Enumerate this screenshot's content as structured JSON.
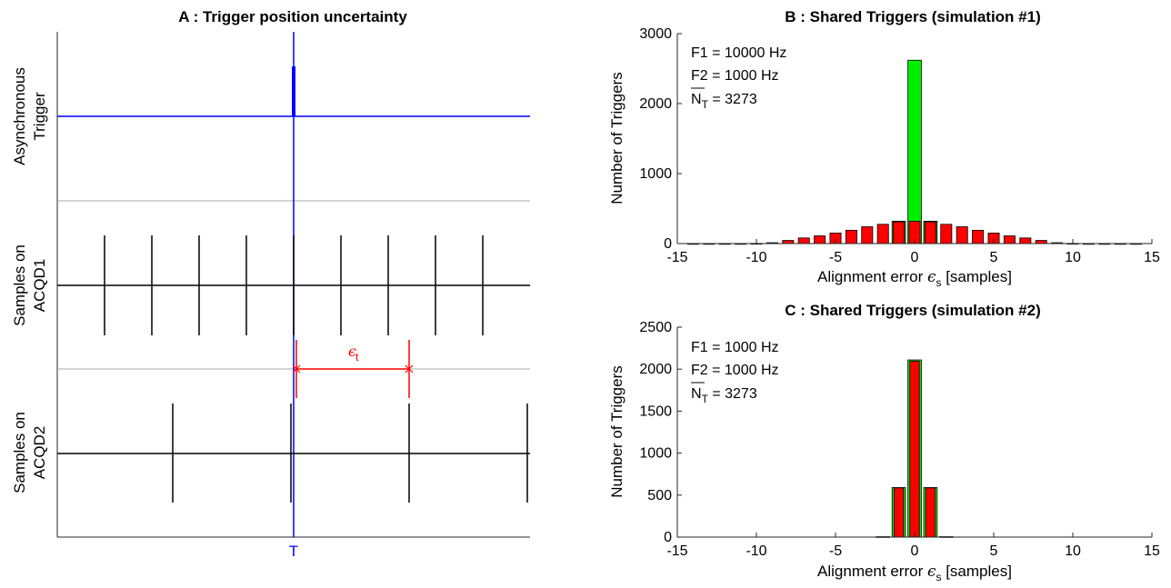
{
  "chart_data": [
    {
      "type": "diagram",
      "title": "A : Trigger position uncertainty",
      "rows": [
        {
          "label_line1": "Asynchronous",
          "label_line2": "Trigger"
        },
        {
          "label_line1": "Samples on",
          "label_line2": "ACQD1"
        },
        {
          "label_line1": "Samples on",
          "label_line2": "ACQD2"
        }
      ],
      "trigger_label": "T",
      "epsilon_label": "ϵ",
      "epsilon_sub": "t",
      "acqd1_tick_offsets": [
        -4,
        -3,
        -2,
        -1,
        0,
        1,
        2,
        3,
        4
      ],
      "acqd2_tick_offsets": [
        -1,
        0,
        1,
        2
      ],
      "colors": {
        "trigger": "#0000ff",
        "samples": "#000000",
        "epsilon": "#ff0000",
        "separator": "#aaaaaa"
      }
    },
    {
      "type": "bar",
      "title": "B : Shared Triggers (simulation #1)",
      "xlabel_prefix": "Alignment error ",
      "xlabel_symbol": "ϵ",
      "xlabel_sub": "s",
      "xlabel_suffix": " [samples]",
      "ylabel": "Number of Triggers",
      "xlim": [
        -15,
        15
      ],
      "ylim": [
        0,
        3000
      ],
      "xticks": [
        -15,
        -10,
        -5,
        0,
        5,
        10,
        15
      ],
      "yticks": [
        0,
        1000,
        2000,
        3000
      ],
      "annotations": [
        "F1 = 10000 Hz",
        "F2 = 1000 Hz"
      ],
      "nt_label": "N",
      "nt_sub": "T",
      "nt_value": " = 3273",
      "series_red": {
        "x": [
          -14,
          -13,
          -12,
          -11,
          -10,
          -9,
          -8,
          -7,
          -6,
          -5,
          -4,
          -3,
          -2,
          -1,
          0,
          1,
          2,
          3,
          4,
          5,
          6,
          7,
          8,
          9,
          10,
          11,
          12,
          13,
          14
        ],
        "values": [
          0,
          0,
          0,
          0,
          2,
          12,
          45,
          80,
          110,
          150,
          190,
          240,
          275,
          310,
          320,
          310,
          275,
          240,
          190,
          150,
          110,
          80,
          45,
          12,
          2,
          0,
          0,
          0,
          0
        ]
      },
      "series_green": {
        "x": [
          -1,
          0,
          1
        ],
        "values": [
          320,
          2620,
          320
        ]
      },
      "colors": {
        "red": "#ff0000",
        "green": "#00ee00"
      }
    },
    {
      "type": "bar",
      "title": "C : Shared Triggers (simulation #2)",
      "xlabel_prefix": "Alignment error ",
      "xlabel_symbol": "ϵ",
      "xlabel_sub": "s",
      "xlabel_suffix": " [samples]",
      "ylabel": "Number of Triggers",
      "xlim": [
        -15,
        15
      ],
      "ylim": [
        0,
        2500
      ],
      "xticks": [
        -15,
        -10,
        -5,
        0,
        5,
        10,
        15
      ],
      "yticks": [
        0,
        500,
        1000,
        1500,
        2000,
        2500
      ],
      "annotations": [
        "F1 = 1000 Hz",
        "F2 = 1000 Hz"
      ],
      "nt_label": "N",
      "nt_sub": "T",
      "nt_value": " = 3273",
      "series_green": {
        "x": [
          -2,
          -1,
          0,
          1,
          2
        ],
        "values": [
          5,
          590,
          2110,
          590,
          5
        ]
      },
      "series_red": {
        "x": [
          -1,
          0,
          1
        ],
        "values": [
          585,
          2095,
          585
        ]
      },
      "colors": {
        "red": "#ff0000",
        "green": "#00ee00"
      }
    }
  ]
}
